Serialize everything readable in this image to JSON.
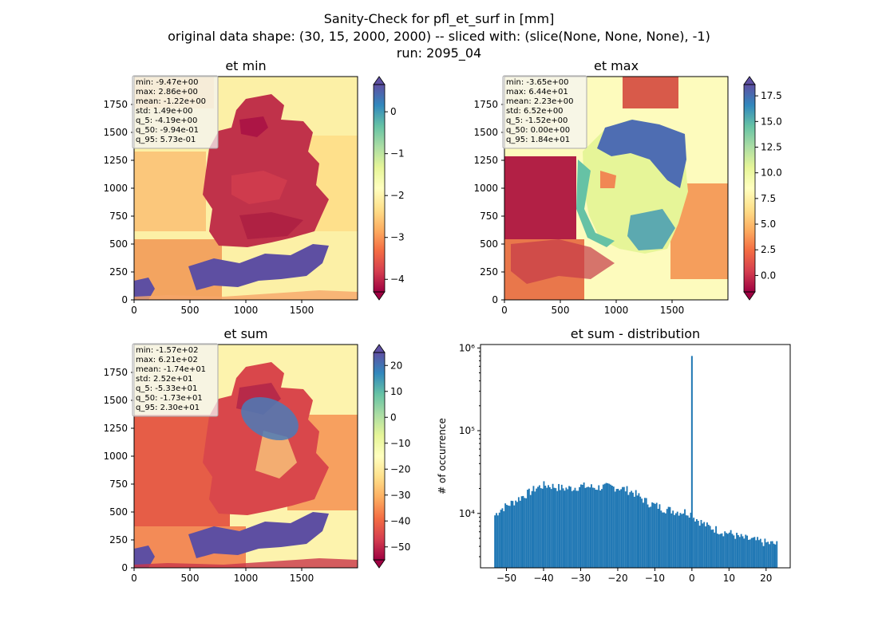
{
  "figure": {
    "title_lines": [
      "Sanity-Check for pfl_et_surf in [mm]",
      "original data shape: (30, 15, 2000, 2000) -- sliced with: (slice(None, None, None), -1)",
      "run: 2095_04"
    ]
  },
  "panels": [
    {
      "title": "et min",
      "x_ticks": [
        "0",
        "500",
        "1000",
        "1500"
      ],
      "y_ticks": [
        "0",
        "250",
        "500",
        "750",
        "1000",
        "1250",
        "1500",
        "1750"
      ],
      "stats": [
        "min: -9.47e+00",
        "max: 2.86e+00",
        "mean: -1.22e+00",
        "std: 1.49e+00",
        "q_5: -4.19e+00",
        "q_50: -9.94e-01",
        "q_95: 5.73e-01"
      ],
      "colorbar": {
        "range": [
          -4.3,
          0.65
        ],
        "ticks": [
          0,
          -1,
          -2,
          -3,
          -4
        ],
        "tick_labels": [
          "0",
          "−1",
          "−2",
          "−3",
          "−4"
        ]
      }
    },
    {
      "title": "et max",
      "x_ticks": [
        "0",
        "500",
        "1000",
        "1500"
      ],
      "y_ticks": [
        "0",
        "250",
        "500",
        "750",
        "1000",
        "1250",
        "1500",
        "1750"
      ],
      "stats": [
        "min: -3.65e+00",
        "max: 6.44e+01",
        "mean: 2.23e+00",
        "std: 6.52e+00",
        "q_5: -1.52e+00",
        "q_50: 0.00e+00",
        "q_95: 1.84e+01"
      ],
      "colorbar": {
        "range": [
          -1.6,
          18.6
        ],
        "ticks": [
          17.5,
          15,
          12.5,
          10,
          7.5,
          5,
          2.5,
          0
        ],
        "tick_labels": [
          "17.5",
          "15.0",
          "12.5",
          "10.0",
          "7.5",
          "5.0",
          "2.5",
          "0.0"
        ]
      }
    },
    {
      "title": "et sum",
      "x_ticks": [
        "0",
        "500",
        "1000",
        "1500"
      ],
      "y_ticks": [
        "0",
        "250",
        "500",
        "750",
        "1000",
        "1250",
        "1500",
        "1750"
      ],
      "stats": [
        "min: -1.57e+02",
        "max: 6.21e+02",
        "mean: -1.74e+01",
        "std: 2.52e+01",
        "q_5: -5.33e+01",
        "q_50: -1.73e+01",
        "q_95: 2.30e+01"
      ],
      "colorbar": {
        "range": [
          -55,
          25
        ],
        "ticks": [
          20,
          10,
          0,
          -10,
          -20,
          -30,
          -40,
          -50
        ],
        "tick_labels": [
          "20",
          "10",
          "0",
          "−10",
          "−20",
          "−30",
          "−40",
          "−50"
        ]
      }
    }
  ],
  "chart_data": {
    "type": "bar",
    "title": "et sum - distribution",
    "xlabel": "",
    "ylabel": "# of occurrence",
    "yscale": "log",
    "xlim": [
      -57,
      26.5
    ],
    "ylim": [
      2200,
      1100000
    ],
    "x_ticks": [
      -50,
      -40,
      -30,
      -20,
      -10,
      0,
      10,
      20
    ],
    "x_tick_labels": [
      "−50",
      "−40",
      "−30",
      "−20",
      "−10",
      "0",
      "10",
      "20"
    ],
    "y_ticks": [
      10000,
      100000,
      1000000
    ],
    "y_tick_labels": [
      "10⁴",
      "10⁵",
      "10⁶"
    ],
    "bar_color": "#1f77b4",
    "bin_width": 0.4,
    "profile_x": [
      -53.3,
      -52,
      -50,
      -48,
      -46,
      -44,
      -42,
      -40,
      -38,
      -36,
      -34,
      -32,
      -30,
      -28,
      -26,
      -24,
      -22,
      -20,
      -18,
      -16,
      -14,
      -12,
      -10,
      -8,
      -6,
      -4,
      -2,
      -0.6,
      0.4,
      2,
      4,
      6,
      8,
      10,
      12,
      14,
      16,
      18,
      20,
      22,
      23
    ],
    "profile_y": [
      9500,
      11000,
      12500,
      14000,
      16000,
      18000,
      20500,
      22000,
      21500,
      20500,
      20000,
      20500,
      21500,
      21000,
      20500,
      21000,
      21000,
      20500,
      19500,
      18000,
      15500,
      13500,
      12500,
      11500,
      11000,
      10500,
      10500,
      10000,
      9000,
      8000,
      7000,
      6500,
      6000,
      5800,
      5300,
      5000,
      4800,
      4600,
      4400,
      4300,
      4200
    ],
    "spike": {
      "x": 0,
      "value": 800000
    }
  }
}
